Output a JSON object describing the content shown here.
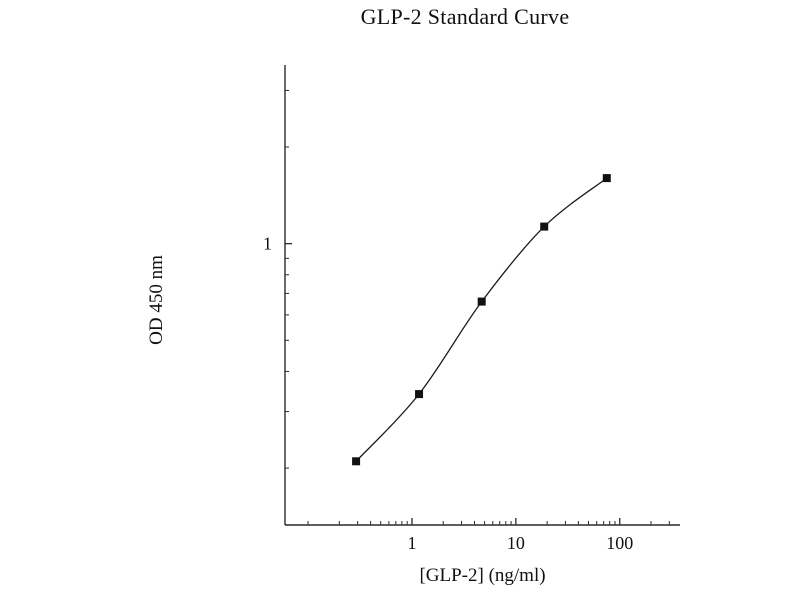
{
  "figure": {
    "background": "#ffffff"
  },
  "chart_data": {
    "type": "line",
    "title": "GLP-2 Standard Curve",
    "xlabel": "[GLP-2] (ng/ml)",
    "ylabel": "OD 450 nm",
    "x_scale": "log",
    "y_scale": "log",
    "x": [
      0.29,
      1.17,
      4.69,
      18.75,
      75
    ],
    "y": [
      0.21,
      0.34,
      0.66,
      1.13,
      1.6
    ],
    "x_ticks": [
      1,
      10,
      100
    ],
    "y_ticks": [
      1
    ],
    "xlim": [
      0.06,
      380
    ],
    "ylim": [
      0.133,
      3.6
    ],
    "grid": false,
    "legend": "none",
    "marker": "square",
    "line_color": "#1c1c1c",
    "marker_color": "#111111",
    "axis_color": "#2a2a2a"
  }
}
